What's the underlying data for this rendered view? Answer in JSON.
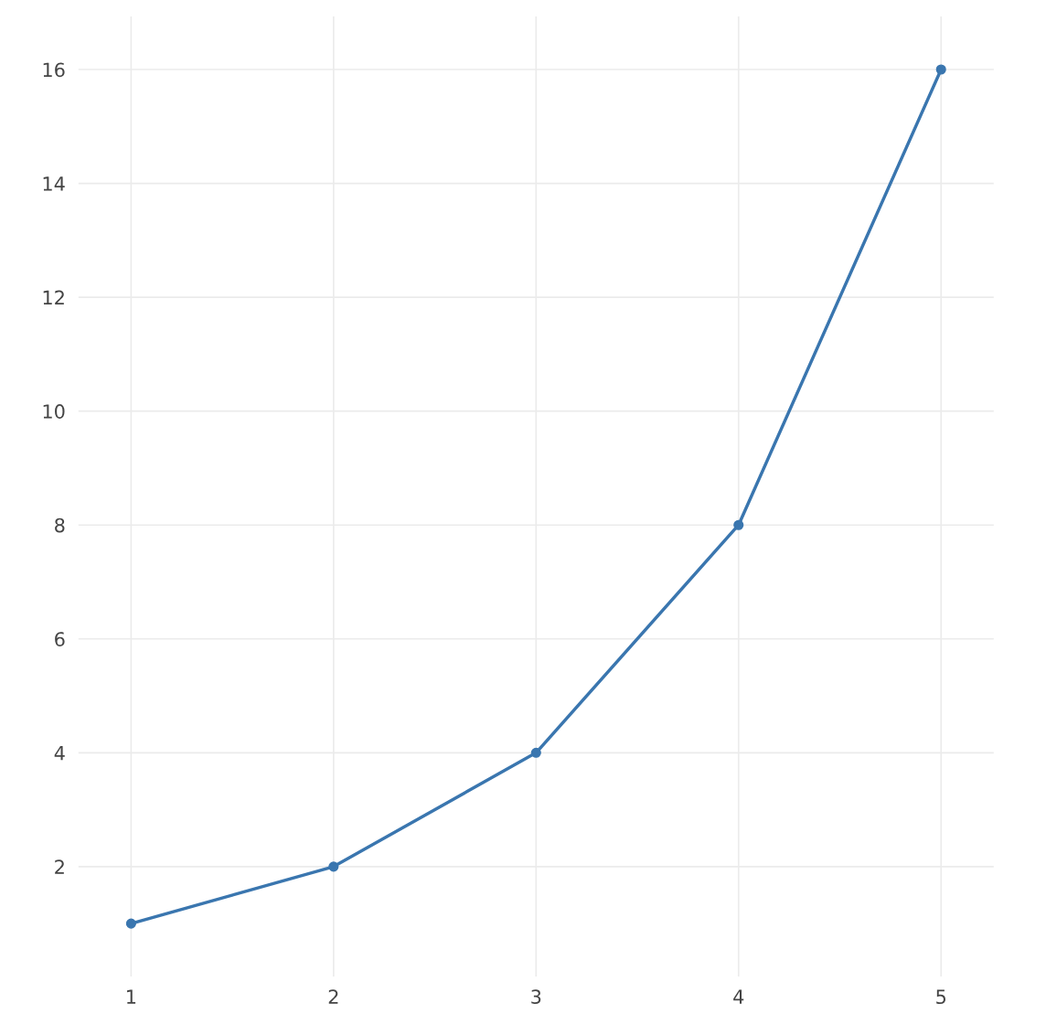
{
  "chart_data": {
    "type": "line",
    "x": [
      1,
      2,
      3,
      4,
      5
    ],
    "series": [
      {
        "color": "#3a76af",
        "values": [
          1,
          2,
          4,
          8,
          16
        ]
      }
    ],
    "xlim": [
      0.74,
      5.26
    ],
    "xticks": [
      1,
      2,
      3,
      4,
      5
    ],
    "ylim": [
      0.07,
      16.93
    ],
    "yticks": [
      2,
      4,
      6,
      8,
      10,
      12,
      14,
      16
    ],
    "grid": true,
    "marker": "circle",
    "line_style": "solid"
  }
}
